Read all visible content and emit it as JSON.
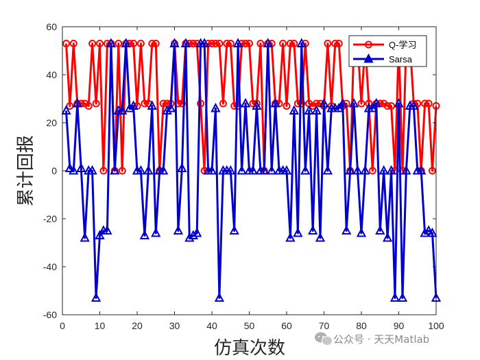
{
  "watermark": {
    "text": "公众号 · 天天Matlab",
    "icon": "wechat-bubble-icon"
  },
  "chart_data": {
    "type": "line",
    "title": "",
    "xlabel": "仿真次数",
    "ylabel": "累计回报",
    "xlim": [
      0,
      100
    ],
    "ylim": [
      -60,
      60
    ],
    "xticks": [
      0,
      10,
      20,
      30,
      40,
      50,
      60,
      70,
      80,
      90,
      100
    ],
    "yticks": [
      -60,
      -40,
      -20,
      0,
      20,
      40,
      60
    ],
    "grid": false,
    "legend_position": "top-right",
    "x": [
      1,
      2,
      3,
      4,
      5,
      6,
      7,
      8,
      9,
      10,
      11,
      12,
      13,
      14,
      15,
      16,
      17,
      18,
      19,
      20,
      21,
      22,
      23,
      24,
      25,
      26,
      27,
      28,
      29,
      30,
      31,
      32,
      33,
      34,
      35,
      36,
      37,
      38,
      39,
      40,
      41,
      42,
      43,
      44,
      45,
      46,
      47,
      48,
      49,
      50,
      51,
      52,
      53,
      54,
      55,
      56,
      57,
      58,
      59,
      60,
      61,
      62,
      63,
      64,
      65,
      66,
      67,
      68,
      69,
      70,
      71,
      72,
      73,
      74,
      75,
      76,
      77,
      78,
      79,
      80,
      81,
      82,
      83,
      84,
      85,
      86,
      87,
      88,
      89,
      90,
      91,
      92,
      93,
      94,
      95,
      96,
      97,
      98,
      99,
      100
    ],
    "series": [
      {
        "name": "Q-学习",
        "color": "#ff0000",
        "marker": "circle",
        "values": [
          53,
          27,
          53,
          28,
          28,
          28,
          27,
          53,
          28,
          53,
          0,
          53,
          53,
          0,
          53,
          0,
          53,
          53,
          53,
          27,
          53,
          28,
          28,
          53,
          53,
          0,
          28,
          28,
          28,
          53,
          28,
          28,
          53,
          53,
          53,
          53,
          28,
          0,
          53,
          53,
          53,
          53,
          28,
          53,
          53,
          27,
          27,
          53,
          53,
          53,
          28,
          28,
          53,
          0,
          53,
          53,
          28,
          28,
          53,
          27,
          53,
          53,
          28,
          28,
          53,
          28,
          27,
          28,
          28,
          27,
          53,
          27,
          53,
          53,
          27,
          28,
          0,
          53,
          53,
          28,
          53,
          28,
          0,
          28,
          28,
          28,
          27,
          27,
          0,
          53,
          0,
          53,
          53,
          28,
          28,
          0,
          28,
          28,
          0,
          27
        ]
      },
      {
        "name": "Sarsa",
        "color": "#0000cc",
        "marker": "triangle",
        "values": [
          25,
          1,
          0,
          28,
          1,
          -28,
          0,
          0,
          -53,
          -27,
          -25,
          -25,
          53,
          0,
          25,
          25,
          53,
          26,
          27,
          0,
          0,
          -27,
          0,
          27,
          -26,
          0,
          0,
          25,
          26,
          53,
          -25,
          1,
          53,
          -28,
          -27,
          -26,
          53,
          53,
          0,
          0,
          26,
          -53,
          0,
          0,
          0,
          -25,
          53,
          0,
          28,
          0,
          0,
          27,
          0,
          0,
          53,
          0,
          28,
          0,
          0,
          0,
          -28,
          25,
          -26,
          53,
          0,
          25,
          -25,
          25,
          -28,
          28,
          0,
          26,
          26,
          26,
          28,
          -25,
          0,
          28,
          0,
          -26,
          0,
          26,
          26,
          28,
          -25,
          0,
          -28,
          0,
          -53,
          28,
          -53,
          0,
          27,
          27,
          0,
          0,
          -26,
          -25,
          -26,
          -53
        ]
      }
    ]
  }
}
